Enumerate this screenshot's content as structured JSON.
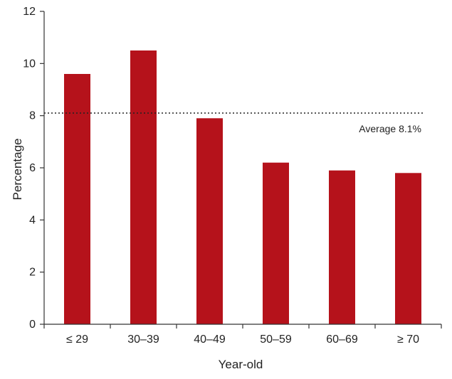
{
  "chart_data": {
    "type": "bar",
    "title": "",
    "xlabel": "Year-old",
    "ylabel": "Percentage",
    "categories": [
      "≤ 29",
      "30–39",
      "40–49",
      "50–59",
      "60–69",
      "≥ 70"
    ],
    "values": [
      9.6,
      10.5,
      7.9,
      6.2,
      5.9,
      5.8
    ],
    "ylim": [
      0,
      12
    ],
    "yticks": [
      0,
      2,
      4,
      6,
      8,
      10,
      12
    ],
    "grid": false,
    "legend": "none",
    "reference_line": {
      "value": 8.1,
      "style": "dotted",
      "label": "Average 8.1%"
    },
    "colors": {
      "bar": "#b5121b",
      "axis": "#333333",
      "reference_line": "#222222"
    }
  }
}
